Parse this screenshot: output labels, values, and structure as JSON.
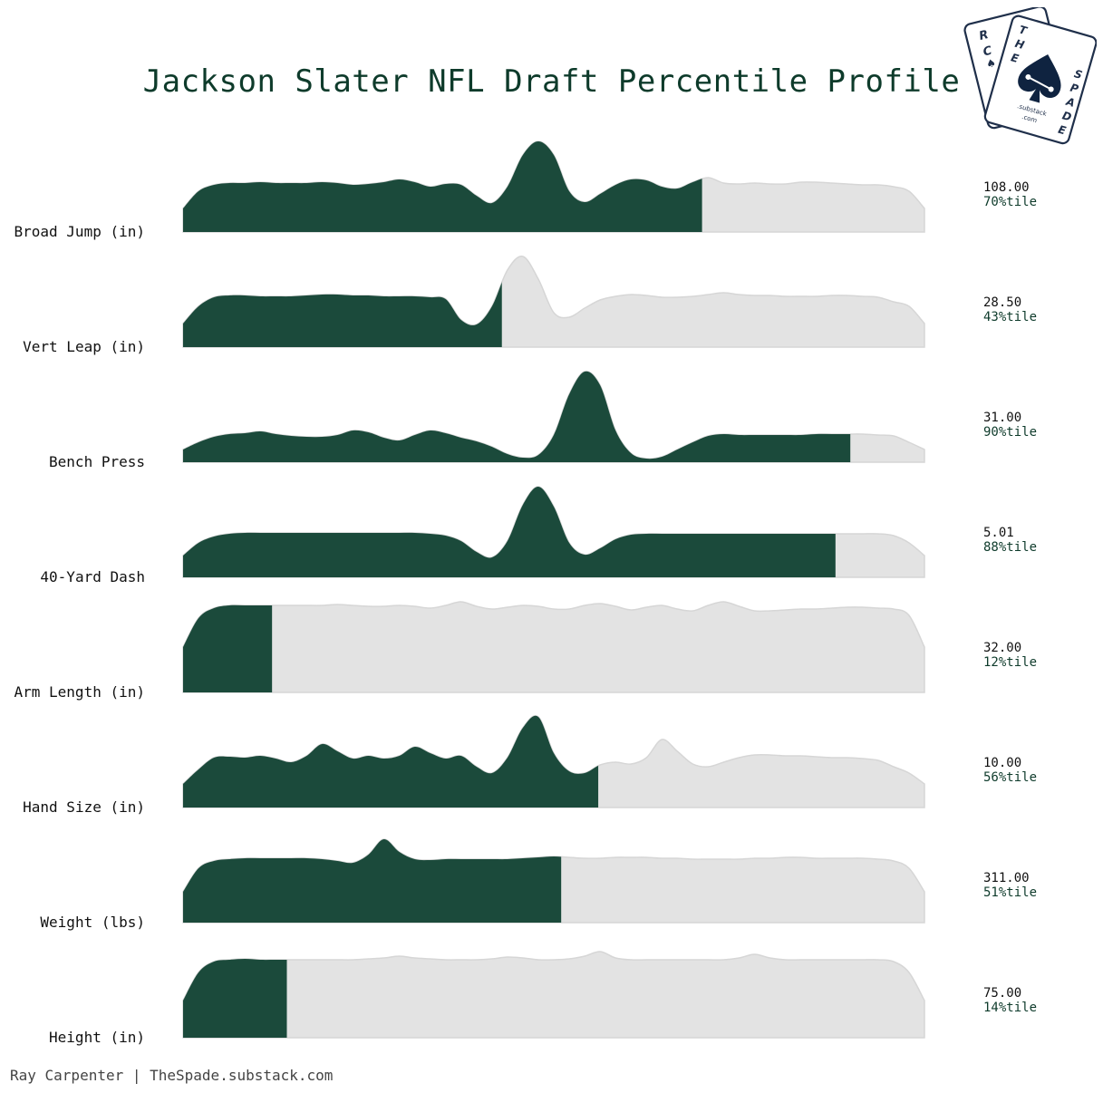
{
  "title": "Jackson Slater NFL Draft Percentile Profile",
  "footer": "Ray Carpenter | TheSpade.substack.com",
  "colors": {
    "fill": "#1b4a3b",
    "background_fill": "#e3e3e3",
    "background_stroke": "#d6d6d6",
    "title": "#0e3b2b",
    "percentile_text": "#0e3b2b"
  },
  "logo": {
    "back_card_letters": [
      "R",
      "C"
    ],
    "front_card_letters": [
      "T",
      "H",
      "E",
      "S",
      "P",
      "A",
      "D",
      "E"
    ],
    "site": ".substack",
    "tld": ".com"
  },
  "chart_data": {
    "type": "ridgeline",
    "title": "Jackson Slater NFL Draft Percentile Profile",
    "rows": [
      {
        "label": "Broad Jump (in)",
        "value": "108.00",
        "percentile_label": "70%tile",
        "percentile": 0.7,
        "density": [
          0.26,
          0.45,
          0.52,
          0.54,
          0.54,
          0.55,
          0.54,
          0.54,
          0.54,
          0.55,
          0.54,
          0.52,
          0.53,
          0.55,
          0.58,
          0.55,
          0.5,
          0.53,
          0.52,
          0.4,
          0.32,
          0.5,
          0.85,
          1.0,
          0.85,
          0.45,
          0.33,
          0.42,
          0.52,
          0.58,
          0.57,
          0.5,
          0.48,
          0.55,
          0.6,
          0.54,
          0.53,
          0.54,
          0.53,
          0.53,
          0.55,
          0.55,
          0.54,
          0.53,
          0.52,
          0.52,
          0.5,
          0.45,
          0.26
        ]
      },
      {
        "label": "Vert Leap (in)",
        "value": "28.50",
        "percentile_label": "43%tile",
        "percentile": 0.43,
        "density": [
          0.26,
          0.45,
          0.55,
          0.57,
          0.57,
          0.56,
          0.56,
          0.56,
          0.57,
          0.58,
          0.58,
          0.57,
          0.57,
          0.56,
          0.56,
          0.56,
          0.55,
          0.53,
          0.3,
          0.25,
          0.45,
          0.85,
          1.0,
          0.75,
          0.38,
          0.33,
          0.43,
          0.52,
          0.56,
          0.58,
          0.57,
          0.55,
          0.55,
          0.56,
          0.58,
          0.6,
          0.58,
          0.57,
          0.57,
          0.56,
          0.56,
          0.56,
          0.57,
          0.57,
          0.56,
          0.55,
          0.5,
          0.45,
          0.26
        ]
      },
      {
        "label": "Bench Press",
        "value": "31.00",
        "percentile_label": "90%tile",
        "percentile": 0.9,
        "density": [
          0.14,
          0.22,
          0.28,
          0.31,
          0.32,
          0.34,
          0.31,
          0.29,
          0.28,
          0.28,
          0.3,
          0.35,
          0.33,
          0.27,
          0.24,
          0.3,
          0.35,
          0.32,
          0.27,
          0.23,
          0.17,
          0.09,
          0.05,
          0.08,
          0.3,
          0.75,
          1.0,
          0.85,
          0.35,
          0.1,
          0.04,
          0.06,
          0.14,
          0.22,
          0.29,
          0.31,
          0.3,
          0.3,
          0.3,
          0.3,
          0.3,
          0.31,
          0.31,
          0.31,
          0.31,
          0.3,
          0.29,
          0.22,
          0.14
        ]
      },
      {
        "label": "40-Yard Dash",
        "value": "5.01",
        "percentile_label": "88%tile",
        "percentile": 0.88,
        "density": [
          0.24,
          0.38,
          0.45,
          0.48,
          0.49,
          0.49,
          0.49,
          0.49,
          0.49,
          0.49,
          0.49,
          0.49,
          0.49,
          0.49,
          0.49,
          0.49,
          0.48,
          0.46,
          0.4,
          0.28,
          0.22,
          0.4,
          0.8,
          1.0,
          0.78,
          0.38,
          0.25,
          0.32,
          0.42,
          0.47,
          0.48,
          0.48,
          0.48,
          0.48,
          0.48,
          0.48,
          0.48,
          0.48,
          0.48,
          0.48,
          0.48,
          0.48,
          0.48,
          0.48,
          0.48,
          0.48,
          0.46,
          0.38,
          0.24
        ]
      },
      {
        "label": "Arm Length (in)",
        "value": "32.00",
        "percentile_label": "12%tile",
        "percentile": 0.12,
        "density": [
          0.5,
          0.82,
          0.93,
          0.96,
          0.96,
          0.96,
          0.96,
          0.96,
          0.96,
          0.96,
          0.97,
          0.96,
          0.95,
          0.95,
          0.96,
          0.95,
          0.93,
          0.96,
          1.0,
          0.95,
          0.92,
          0.94,
          0.96,
          0.95,
          0.92,
          0.92,
          0.96,
          0.98,
          0.95,
          0.91,
          0.94,
          0.96,
          0.92,
          0.9,
          0.96,
          1.0,
          0.95,
          0.9,
          0.9,
          0.91,
          0.92,
          0.92,
          0.93,
          0.94,
          0.94,
          0.93,
          0.92,
          0.85,
          0.5
        ]
      },
      {
        "label": "Hand Size (in)",
        "value": "10.00",
        "percentile_label": "56%tile",
        "percentile": 0.56,
        "density": [
          0.26,
          0.42,
          0.55,
          0.56,
          0.55,
          0.57,
          0.54,
          0.5,
          0.57,
          0.7,
          0.62,
          0.54,
          0.57,
          0.54,
          0.57,
          0.67,
          0.6,
          0.54,
          0.57,
          0.45,
          0.38,
          0.55,
          0.88,
          1.0,
          0.6,
          0.4,
          0.38,
          0.47,
          0.5,
          0.48,
          0.55,
          0.75,
          0.62,
          0.48,
          0.45,
          0.5,
          0.55,
          0.58,
          0.58,
          0.57,
          0.57,
          0.56,
          0.55,
          0.55,
          0.54,
          0.52,
          0.45,
          0.38,
          0.26
        ]
      },
      {
        "label": "Weight (lbs)",
        "value": "311.00",
        "percentile_label": "51%tile",
        "percentile": 0.51,
        "density": [
          0.34,
          0.6,
          0.68,
          0.7,
          0.71,
          0.71,
          0.71,
          0.71,
          0.71,
          0.7,
          0.68,
          0.66,
          0.75,
          0.92,
          0.78,
          0.7,
          0.69,
          0.7,
          0.7,
          0.7,
          0.7,
          0.7,
          0.71,
          0.72,
          0.73,
          0.72,
          0.71,
          0.71,
          0.72,
          0.72,
          0.72,
          0.71,
          0.71,
          0.7,
          0.7,
          0.7,
          0.7,
          0.71,
          0.71,
          0.72,
          0.72,
          0.71,
          0.71,
          0.71,
          0.71,
          0.7,
          0.68,
          0.6,
          0.34
        ]
      },
      {
        "label": "Height (in)",
        "value": "75.00",
        "percentile_label": "14%tile",
        "percentile": 0.14,
        "density": [
          0.41,
          0.72,
          0.84,
          0.86,
          0.87,
          0.86,
          0.86,
          0.86,
          0.86,
          0.86,
          0.86,
          0.86,
          0.87,
          0.88,
          0.9,
          0.88,
          0.87,
          0.86,
          0.86,
          0.86,
          0.87,
          0.89,
          0.88,
          0.86,
          0.86,
          0.87,
          0.9,
          0.95,
          0.88,
          0.86,
          0.86,
          0.86,
          0.86,
          0.86,
          0.86,
          0.86,
          0.88,
          0.92,
          0.88,
          0.86,
          0.86,
          0.86,
          0.86,
          0.86,
          0.86,
          0.86,
          0.84,
          0.72,
          0.41
        ]
      }
    ]
  }
}
